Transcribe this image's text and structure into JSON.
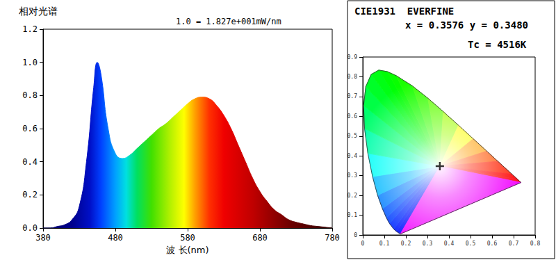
{
  "chart_data": [
    {
      "type": "area",
      "title": "相对光谱",
      "annotations": [
        "1.0 = 1.827e+001mW/nm"
      ],
      "x_label": "波 长(nm)",
      "x": [
        380,
        390,
        400,
        410,
        420,
        430,
        440,
        450,
        455,
        460,
        470,
        480,
        490,
        500,
        510,
        520,
        530,
        540,
        550,
        560,
        570,
        580,
        590,
        600,
        610,
        620,
        630,
        640,
        650,
        660,
        670,
        680,
        690,
        700,
        710,
        720,
        730,
        740,
        750,
        760,
        770,
        780
      ],
      "values": [
        0.0,
        0.0,
        0.01,
        0.02,
        0.05,
        0.13,
        0.4,
        0.85,
        1.0,
        0.93,
        0.6,
        0.45,
        0.42,
        0.44,
        0.48,
        0.52,
        0.56,
        0.6,
        0.63,
        0.67,
        0.71,
        0.75,
        0.78,
        0.79,
        0.78,
        0.74,
        0.68,
        0.6,
        0.5,
        0.4,
        0.3,
        0.22,
        0.16,
        0.11,
        0.08,
        0.05,
        0.035,
        0.025,
        0.015,
        0.01,
        0.005,
        0.0
      ],
      "xlim": [
        380,
        780
      ],
      "xticks": [
        380,
        480,
        580,
        680,
        780
      ],
      "ylim": [
        0,
        1.2
      ],
      "yticks": [
        {
          "value": 0,
          "label": "0.0"
        },
        0.2,
        0.4,
        0.6,
        0.8,
        {
          "value": 1,
          "label": "1.0"
        },
        1.2
      ],
      "grid": false
    },
    {
      "type": "chromaticity",
      "title": "CIE1931  EVERFINE",
      "annotations": [
        "x = 0.3576 y = 0.3480",
        "Tc = 4516K"
      ],
      "locus": {
        "x": [
          0.1741,
          0.1566,
          0.144,
          0.1241,
          0.1096,
          0.0913,
          0.0687,
          0.0454,
          0.0235,
          0.0082,
          0.0039,
          0.0139,
          0.0389,
          0.0743,
          0.1142,
          0.1547,
          0.2296,
          0.3016,
          0.3731,
          0.4441,
          0.5125,
          0.5752,
          0.627,
          0.6915,
          0.719,
          0.7347
        ],
        "y": [
          0.005,
          0.0177,
          0.0297,
          0.0578,
          0.0868,
          0.1327,
          0.2007,
          0.295,
          0.4127,
          0.5384,
          0.6548,
          0.7502,
          0.812,
          0.8338,
          0.8262,
          0.8059,
          0.7543,
          0.6923,
          0.6245,
          0.5547,
          0.4866,
          0.4242,
          0.3725,
          0.3083,
          0.2809,
          0.2653
        ]
      },
      "point": {
        "x": 0.3576,
        "y": 0.348
      },
      "xlim": [
        0,
        0.8
      ],
      "xticks": [
        0,
        0.1,
        0.2,
        0.3,
        0.4,
        0.5,
        0.6,
        0.7,
        0.8
      ],
      "ylim": [
        0,
        0.9
      ],
      "yticks": [
        0,
        0.1,
        0.2,
        0.3,
        0.4,
        0.5,
        0.6,
        0.7,
        0.8,
        0.9
      ],
      "grid": false
    }
  ]
}
